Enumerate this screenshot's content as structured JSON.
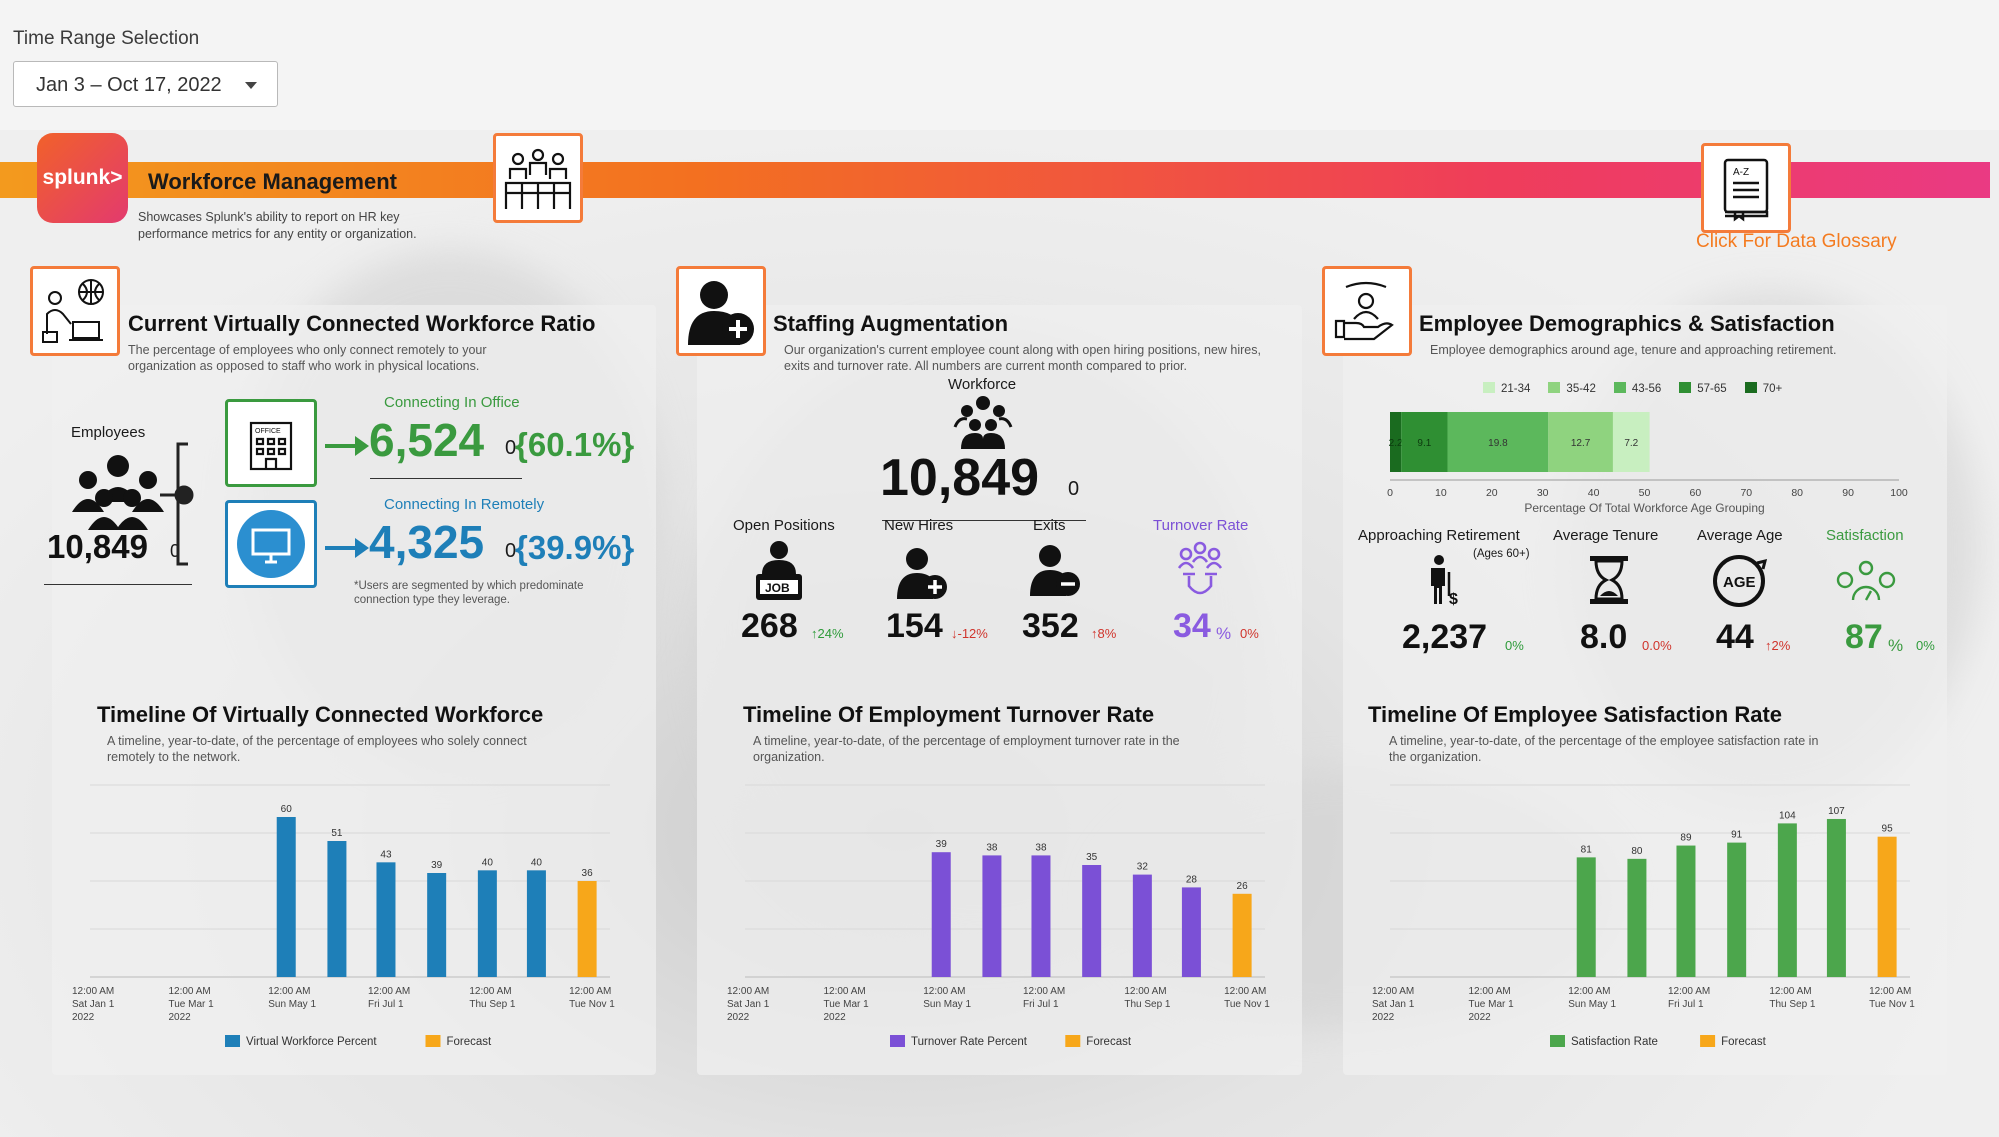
{
  "time_range": {
    "label": "Time Range Selection",
    "value": "Jan 3 – Oct 17, 2022"
  },
  "banner": {
    "logo_text": "splunk>",
    "title": "Workforce Management",
    "subtitle": "Showcases Splunk's ability to report on HR key performance metrics for any entity or organization.",
    "glossary_link": "Click For Data Glossary"
  },
  "colors": {
    "orange": "#f47b20",
    "green": "#3a9a3f",
    "blue": "#1e7fb8",
    "purple": "#7b50d6",
    "forecast": "#f7a71a",
    "red": "#d0342c"
  },
  "virtual": {
    "title": "Current Virtually Connected Workforce Ratio",
    "subtitle": "The percentage of employees who only connect remotely to your organization as opposed to staff who work in physical locations.",
    "employees_label": "Employees",
    "employees_value": "10,849",
    "employees_delta": "0",
    "office_label": "Connecting In Office",
    "office_value": "6,524",
    "office_delta": "0",
    "office_pct": "{60.1%}",
    "remote_label": "Connecting In Remotely",
    "remote_value": "4,325",
    "remote_delta": "0",
    "remote_pct": "{39.9%}",
    "footnote": "*Users are segmented by which predominate connection type they leverage.",
    "office_sign": "OFFICE"
  },
  "staffing": {
    "title": "Staffing Augmentation",
    "subtitle": "Our organization's current employee count along with open hiring positions, new hires, exits and turnover rate.  All numbers are current month compared to prior.",
    "workforce_label": "Workforce",
    "workforce_value": "10,849",
    "workforce_delta": "0",
    "metrics": [
      {
        "label": "Open Positions",
        "value": "268",
        "delta": "↑24%",
        "dir": "up"
      },
      {
        "label": "New Hires",
        "value": "154",
        "delta": "↓-12%",
        "dir": "down"
      },
      {
        "label": "Exits",
        "value": "352",
        "delta": "↑8%",
        "dir": "down"
      },
      {
        "label": "Turnover Rate",
        "value": "34",
        "unit": "%",
        "delta": "0%",
        "dir": "down"
      }
    ],
    "job_sign": "JOB"
  },
  "demographics": {
    "title": "Employee Demographics & Satisfaction",
    "subtitle": "Employee demographics around age, tenure and approaching retirement.",
    "legend": [
      "21-34",
      "35-42",
      "43-56",
      "57-65",
      "70+"
    ],
    "axis_label": "Percentage Of Total Workforce Age Grouping",
    "retirement_label": "Approaching Retirement",
    "retirement_sub": "(Ages 60+)",
    "retirement_value": "2,237",
    "retirement_delta": "0%",
    "tenure_label": "Average Tenure",
    "tenure_value": "8.0",
    "tenure_delta": "0.0%",
    "age_label": "Average Age",
    "age_value": "44",
    "age_delta": "↑2%",
    "age_icon_text": "AGE",
    "sat_label": "Satisfaction",
    "sat_value": "87",
    "sat_unit": "%",
    "sat_delta": "0%"
  },
  "chart_data": [
    {
      "type": "bar",
      "title": "Percentage Of Total Workforce Age Grouping",
      "orientation": "horizontal-stacked",
      "series": [
        {
          "name": "70+",
          "values": [
            2.2
          ]
        },
        {
          "name": "57-65",
          "values": [
            9.1
          ]
        },
        {
          "name": "43-56",
          "values": [
            19.8
          ]
        },
        {
          "name": "35-42",
          "values": [
            12.7
          ]
        },
        {
          "name": "21-34",
          "values": [
            7.2
          ]
        }
      ],
      "bar_labels": [
        "2.2",
        "9.1",
        "19.8",
        "12.7",
        "7.2"
      ],
      "series_colors": [
        "#1a6b1f",
        "#2f8f33",
        "#5cb85c",
        "#8fd37f",
        "#c8efc0"
      ],
      "xlim": [
        0,
        100
      ],
      "xticks": [
        "0",
        "10",
        "20",
        "30",
        "40",
        "50",
        "60",
        "70",
        "80",
        "90",
        "100"
      ],
      "legend_placement": "top"
    },
    {
      "type": "bar",
      "title": "Timeline Of Virtually Connected Workforce",
      "subtitle": "A timeline, year-to-date, of the percentage of employees who solely connect remotely to the network.",
      "x": [
        "2022-05-01",
        "2022-06-01",
        "2022-07-01",
        "2022-08-01",
        "2022-09-01",
        "2022-10-01",
        "2022-11-01"
      ],
      "series": [
        {
          "name": "Virtual Workforce Percent",
          "color": "#1e7fb8",
          "values": [
            60,
            51,
            43,
            39,
            40,
            40,
            null
          ]
        },
        {
          "name": "Forecast",
          "color": "#f7a71a",
          "values": [
            null,
            null,
            null,
            null,
            null,
            null,
            36
          ]
        }
      ],
      "xtick_labels": [
        [
          "12:00 AM",
          "Sat Jan 1",
          "2022"
        ],
        [
          "12:00 AM",
          "Tue Mar 1",
          "2022"
        ],
        [
          "12:00 AM",
          "Sun May 1"
        ],
        [
          "12:00 AM",
          "Fri Jul 1"
        ],
        [
          "12:00 AM",
          "Thu Sep 1"
        ],
        [
          "12:00 AM",
          "Tue Nov 1"
        ]
      ],
      "xlim": [
        "2022-01-01",
        "2022-11-15"
      ],
      "ylim": [
        0,
        72
      ],
      "grid": true,
      "legend_placement": "bottom"
    },
    {
      "type": "bar",
      "title": "Timeline Of Employment Turnover Rate",
      "subtitle": "A timeline, year-to-date, of the percentage of employment turnover rate in the organization.",
      "x": [
        "2022-05-01",
        "2022-06-01",
        "2022-07-01",
        "2022-08-01",
        "2022-09-01",
        "2022-10-01",
        "2022-11-01"
      ],
      "series": [
        {
          "name": "Turnover Rate Percent",
          "color": "#7b50d6",
          "values": [
            39,
            38,
            38,
            35,
            32,
            28,
            null
          ]
        },
        {
          "name": "Forecast",
          "color": "#f7a71a",
          "values": [
            null,
            null,
            null,
            null,
            null,
            null,
            26
          ]
        }
      ],
      "xtick_labels": [
        [
          "12:00 AM",
          "Sat Jan 1",
          "2022"
        ],
        [
          "12:00 AM",
          "Tue Mar 1",
          "2022"
        ],
        [
          "12:00 AM",
          "Sun May 1"
        ],
        [
          "12:00 AM",
          "Fri Jul 1"
        ],
        [
          "12:00 AM",
          "Thu Sep 1"
        ],
        [
          "12:00 AM",
          "Tue Nov 1"
        ]
      ],
      "xlim": [
        "2022-01-01",
        "2022-11-15"
      ],
      "ylim": [
        0,
        60
      ],
      "grid": true,
      "legend_placement": "bottom"
    },
    {
      "type": "bar",
      "title": "Timeline Of Employee Satisfaction Rate",
      "subtitle": "A timeline, year-to-date, of the percentage of the employee satisfaction rate in the organization.",
      "x": [
        "2022-05-01",
        "2022-06-01",
        "2022-07-01",
        "2022-08-01",
        "2022-09-01",
        "2022-10-01",
        "2022-11-01"
      ],
      "series": [
        {
          "name": "Satisfaction Rate",
          "color": "#4ca64c",
          "values": [
            81,
            80,
            89,
            91,
            104,
            107,
            null
          ]
        },
        {
          "name": "Forecast",
          "color": "#f7a71a",
          "values": [
            null,
            null,
            null,
            null,
            null,
            null,
            95
          ]
        }
      ],
      "xtick_labels": [
        [
          "12:00 AM",
          "Sat Jan 1",
          "2022"
        ],
        [
          "12:00 AM",
          "Tue Mar 1",
          "2022"
        ],
        [
          "12:00 AM",
          "Sun May 1"
        ],
        [
          "12:00 AM",
          "Fri Jul 1"
        ],
        [
          "12:00 AM",
          "Thu Sep 1"
        ],
        [
          "12:00 AM",
          "Tue Nov 1"
        ]
      ],
      "xlim": [
        "2022-01-01",
        "2022-11-15"
      ],
      "ylim": [
        0,
        130
      ],
      "grid": true,
      "legend_placement": "bottom"
    }
  ]
}
